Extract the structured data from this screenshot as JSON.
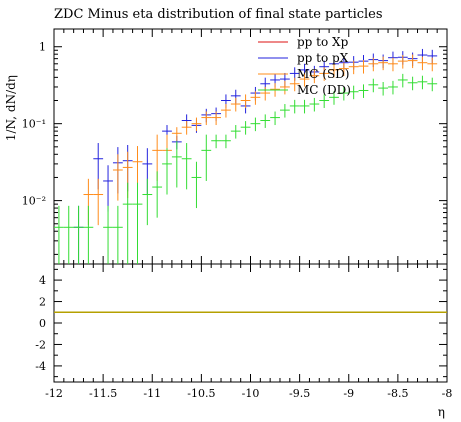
{
  "chart_data": [
    {
      "type": "scatter",
      "title": "ZDC Minus eta distribution of final state particles",
      "ylabel": "1/N, dN/dη",
      "xlabel": "η",
      "xlim": [
        -12,
        -8
      ],
      "ylim": [
        0.0015,
        1.7
      ],
      "yscale": "log",
      "ytick_labels": [
        "1",
        "10⁻¹",
        "10⁻²"
      ],
      "legend_position": "top-right",
      "grid": false,
      "series": [
        {
          "name": "pp to Xp",
          "color": "#dd1111",
          "points": []
        },
        {
          "name": "pp to pX",
          "color": "#2222dd",
          "points": [
            {
              "x": -11.75,
              "y": 0.0045
            },
            {
              "x": -11.55,
              "y": 0.035
            },
            {
              "x": -11.45,
              "y": 0.018
            },
            {
              "x": -11.35,
              "y": 0.031
            },
            {
              "x": -11.25,
              "y": 0.033
            },
            {
              "x": -11.05,
              "y": 0.03
            },
            {
              "x": -10.85,
              "y": 0.08
            },
            {
              "x": -10.75,
              "y": 0.058
            },
            {
              "x": -10.65,
              "y": 0.11
            },
            {
              "x": -10.55,
              "y": 0.095
            },
            {
              "x": -10.45,
              "y": 0.13
            },
            {
              "x": -10.35,
              "y": 0.135
            },
            {
              "x": -10.25,
              "y": 0.2
            },
            {
              "x": -10.15,
              "y": 0.23
            },
            {
              "x": -10.05,
              "y": 0.17
            },
            {
              "x": -9.95,
              "y": 0.25
            },
            {
              "x": -9.85,
              "y": 0.33
            },
            {
              "x": -9.75,
              "y": 0.37
            },
            {
              "x": -9.65,
              "y": 0.38
            },
            {
              "x": -9.55,
              "y": 0.45
            },
            {
              "x": -9.45,
              "y": 0.5
            },
            {
              "x": -9.35,
              "y": 0.47
            },
            {
              "x": -9.25,
              "y": 0.55
            },
            {
              "x": -9.15,
              "y": 0.6
            },
            {
              "x": -9.05,
              "y": 0.62
            },
            {
              "x": -8.95,
              "y": 0.63
            },
            {
              "x": -8.85,
              "y": 0.65
            },
            {
              "x": -8.75,
              "y": 0.68
            },
            {
              "x": -8.65,
              "y": 0.66
            },
            {
              "x": -8.55,
              "y": 0.72
            },
            {
              "x": -8.45,
              "y": 0.73
            },
            {
              "x": -8.35,
              "y": 0.7
            },
            {
              "x": -8.25,
              "y": 0.78
            },
            {
              "x": -8.15,
              "y": 0.76
            }
          ]
        },
        {
          "name": "MC (SD)",
          "color": "#ff8c1a",
          "points": [
            {
              "x": -11.65,
              "y": 0.012
            },
            {
              "x": -11.55,
              "y": 0.012
            },
            {
              "x": -11.35,
              "y": 0.025
            },
            {
              "x": -11.25,
              "y": 0.027
            },
            {
              "x": -11.15,
              "y": 0.032
            },
            {
              "x": -10.95,
              "y": 0.045
            },
            {
              "x": -10.85,
              "y": 0.045
            },
            {
              "x": -10.75,
              "y": 0.075
            },
            {
              "x": -10.65,
              "y": 0.09
            },
            {
              "x": -10.55,
              "y": 0.1
            },
            {
              "x": -10.45,
              "y": 0.12
            },
            {
              "x": -10.35,
              "y": 0.12
            },
            {
              "x": -10.25,
              "y": 0.15
            },
            {
              "x": -10.15,
              "y": 0.18
            },
            {
              "x": -10.05,
              "y": 0.2
            },
            {
              "x": -9.95,
              "y": 0.22
            },
            {
              "x": -9.85,
              "y": 0.25
            },
            {
              "x": -9.75,
              "y": 0.28
            },
            {
              "x": -9.65,
              "y": 0.3
            },
            {
              "x": -9.55,
              "y": 0.33
            },
            {
              "x": -9.45,
              "y": 0.38
            },
            {
              "x": -9.35,
              "y": 0.42
            },
            {
              "x": -9.25,
              "y": 0.45
            },
            {
              "x": -9.15,
              "y": 0.5
            },
            {
              "x": -9.05,
              "y": 0.52
            },
            {
              "x": -8.95,
              "y": 0.55
            },
            {
              "x": -8.85,
              "y": 0.56
            },
            {
              "x": -8.75,
              "y": 0.6
            },
            {
              "x": -8.65,
              "y": 0.62
            },
            {
              "x": -8.55,
              "y": 0.6
            },
            {
              "x": -8.45,
              "y": 0.65
            },
            {
              "x": -8.35,
              "y": 0.66
            },
            {
              "x": -8.25,
              "y": 0.62
            },
            {
              "x": -8.15,
              "y": 0.6
            }
          ]
        },
        {
          "name": "MC (DD)",
          "color": "#33dd33",
          "points": [
            {
              "x": -11.95,
              "y": 0.0045
            },
            {
              "x": -11.85,
              "y": 0.0045
            },
            {
              "x": -11.75,
              "y": 0.0045
            },
            {
              "x": -11.65,
              "y": 0.0045
            },
            {
              "x": -11.45,
              "y": 0.0045
            },
            {
              "x": -11.35,
              "y": 0.0045
            },
            {
              "x": -11.25,
              "y": 0.009
            },
            {
              "x": -11.15,
              "y": 0.009
            },
            {
              "x": -11.05,
              "y": 0.012
            },
            {
              "x": -10.95,
              "y": 0.015
            },
            {
              "x": -10.85,
              "y": 0.03
            },
            {
              "x": -10.75,
              "y": 0.037
            },
            {
              "x": -10.65,
              "y": 0.035
            },
            {
              "x": -10.55,
              "y": 0.02
            },
            {
              "x": -10.45,
              "y": 0.045
            },
            {
              "x": -10.35,
              "y": 0.06
            },
            {
              "x": -10.25,
              "y": 0.06
            },
            {
              "x": -10.15,
              "y": 0.08
            },
            {
              "x": -10.05,
              "y": 0.09
            },
            {
              "x": -9.95,
              "y": 0.1
            },
            {
              "x": -9.85,
              "y": 0.11
            },
            {
              "x": -9.75,
              "y": 0.12
            },
            {
              "x": -9.65,
              "y": 0.15
            },
            {
              "x": -9.55,
              "y": 0.17
            },
            {
              "x": -9.45,
              "y": 0.17
            },
            {
              "x": -9.35,
              "y": 0.18
            },
            {
              "x": -9.25,
              "y": 0.2
            },
            {
              "x": -9.15,
              "y": 0.22
            },
            {
              "x": -9.05,
              "y": 0.25
            },
            {
              "x": -8.95,
              "y": 0.26
            },
            {
              "x": -8.85,
              "y": 0.27
            },
            {
              "x": -8.75,
              "y": 0.32
            },
            {
              "x": -8.65,
              "y": 0.29
            },
            {
              "x": -8.55,
              "y": 0.3
            },
            {
              "x": -8.45,
              "y": 0.37
            },
            {
              "x": -8.35,
              "y": 0.34
            },
            {
              "x": -8.25,
              "y": 0.35
            },
            {
              "x": -8.15,
              "y": 0.33
            }
          ]
        }
      ]
    },
    {
      "type": "line",
      "title": "",
      "xlabel": "η",
      "ylabel": "",
      "xlim": [
        -12,
        -8
      ],
      "ylim": [
        -5.5,
        5.5
      ],
      "yticks": [
        4,
        2,
        0,
        -2,
        -4
      ],
      "xticks": [
        -12,
        -11.5,
        -11,
        -10.5,
        -10,
        -9.5,
        -9,
        -8.5,
        -8
      ],
      "grid": false,
      "series": [
        {
          "color": "#b5a000",
          "points": [
            {
              "x": -12,
              "y": 1
            },
            {
              "x": -8,
              "y": 1
            }
          ]
        }
      ]
    }
  ]
}
